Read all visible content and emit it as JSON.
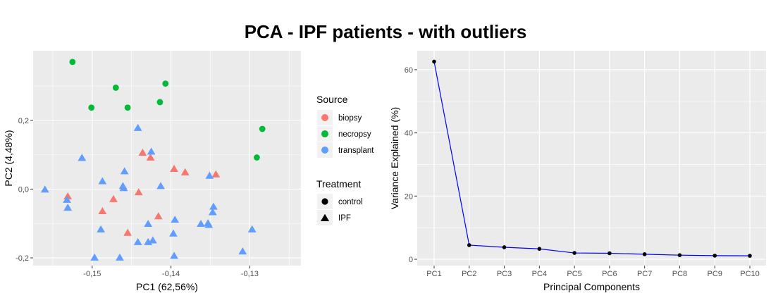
{
  "title": "PCA - IPF patients - with outliers",
  "colors": {
    "panel": "#ebebeb",
    "grid_major": "#ffffff",
    "biopsy": "#F8766D",
    "necropsy": "#00BA38",
    "transplant": "#619CFF",
    "scree_line": "#0000ff",
    "scree_point": "#000000"
  },
  "legend": {
    "source_title": "Source",
    "source_items": [
      {
        "label": "biopsy",
        "key": "biopsy"
      },
      {
        "label": "necropsy",
        "key": "necropsy"
      },
      {
        "label": "transplant",
        "key": "transplant"
      }
    ],
    "treatment_title": "Treatment",
    "treatment_items": [
      {
        "label": "control",
        "shape": "circle"
      },
      {
        "label": "IPF",
        "shape": "triangle"
      }
    ],
    "position": "right"
  },
  "chart_data": [
    {
      "type": "scatter",
      "xlabel": "PC1 (62,56%)",
      "ylabel": "PC2 (4,48%)",
      "xlim": [
        -0.1575,
        -0.1235
      ],
      "ylim": [
        -0.2225,
        0.4025
      ],
      "xticks": [
        -0.15,
        -0.14,
        -0.13
      ],
      "xtick_labels": [
        "-0,15",
        "-0,14",
        "-0,13"
      ],
      "yticks": [
        -0.2,
        0.0,
        0.2
      ],
      "ytick_labels": [
        "-0,2",
        "0,0",
        "0,2"
      ],
      "grid": true,
      "points": [
        {
          "x": -0.1525,
          "y": 0.37,
          "source": "necropsy",
          "treatment": "control"
        },
        {
          "x": -0.1501,
          "y": 0.237,
          "source": "necropsy",
          "treatment": "control"
        },
        {
          "x": -0.147,
          "y": 0.295,
          "source": "necropsy",
          "treatment": "control"
        },
        {
          "x": -0.1455,
          "y": 0.237,
          "source": "necropsy",
          "treatment": "control"
        },
        {
          "x": -0.1407,
          "y": 0.307,
          "source": "necropsy",
          "treatment": "control"
        },
        {
          "x": -0.1414,
          "y": 0.253,
          "source": "necropsy",
          "treatment": "control"
        },
        {
          "x": -0.1284,
          "y": 0.175,
          "source": "necropsy",
          "treatment": "control"
        },
        {
          "x": -0.1291,
          "y": 0.092,
          "source": "necropsy",
          "treatment": "control"
        },
        {
          "x": -0.1436,
          "y": 0.105,
          "source": "biopsy",
          "treatment": "IPF"
        },
        {
          "x": -0.1426,
          "y": 0.091,
          "source": "biopsy",
          "treatment": "IPF"
        },
        {
          "x": -0.1396,
          "y": 0.058,
          "source": "biopsy",
          "treatment": "IPF"
        },
        {
          "x": -0.1382,
          "y": 0.048,
          "source": "biopsy",
          "treatment": "IPF"
        },
        {
          "x": -0.1343,
          "y": 0.042,
          "source": "biopsy",
          "treatment": "IPF"
        },
        {
          "x": -0.1531,
          "y": -0.022,
          "source": "biopsy",
          "treatment": "IPF"
        },
        {
          "x": -0.1473,
          "y": -0.03,
          "source": "biopsy",
          "treatment": "IPF"
        },
        {
          "x": -0.1441,
          "y": -0.01,
          "source": "biopsy",
          "treatment": "IPF"
        },
        {
          "x": -0.1487,
          "y": -0.065,
          "source": "biopsy",
          "treatment": "IPF"
        },
        {
          "x": -0.1416,
          "y": -0.08,
          "source": "biopsy",
          "treatment": "IPF"
        },
        {
          "x": -0.1455,
          "y": -0.128,
          "source": "biopsy",
          "treatment": "IPF"
        },
        {
          "x": -0.1442,
          "y": 0.177,
          "source": "transplant",
          "treatment": "IPF"
        },
        {
          "x": -0.1425,
          "y": 0.108,
          "source": "transplant",
          "treatment": "IPF"
        },
        {
          "x": -0.1513,
          "y": 0.09,
          "source": "transplant",
          "treatment": "IPF"
        },
        {
          "x": -0.1459,
          "y": 0.051,
          "source": "transplant",
          "treatment": "IPF"
        },
        {
          "x": -0.1487,
          "y": 0.022,
          "source": "transplant",
          "treatment": "IPF"
        },
        {
          "x": -0.1461,
          "y": 0.008,
          "source": "transplant",
          "treatment": "IPF"
        },
        {
          "x": -0.146,
          "y": 0.002,
          "source": "transplant",
          "treatment": "IPF"
        },
        {
          "x": -0.1413,
          "y": 0.008,
          "source": "transplant",
          "treatment": "IPF"
        },
        {
          "x": -0.156,
          "y": -0.002,
          "source": "transplant",
          "treatment": "IPF"
        },
        {
          "x": -0.1532,
          "y": -0.032,
          "source": "transplant",
          "treatment": "IPF"
        },
        {
          "x": -0.1531,
          "y": -0.055,
          "source": "transplant",
          "treatment": "IPF"
        },
        {
          "x": -0.1351,
          "y": 0.038,
          "source": "transplant",
          "treatment": "IPF"
        },
        {
          "x": -0.1346,
          "y": -0.052,
          "source": "transplant",
          "treatment": "IPF"
        },
        {
          "x": -0.1347,
          "y": -0.068,
          "source": "transplant",
          "treatment": "IPF"
        },
        {
          "x": -0.1395,
          "y": -0.09,
          "source": "transplant",
          "treatment": "IPF"
        },
        {
          "x": -0.1429,
          "y": -0.102,
          "source": "transplant",
          "treatment": "IPF"
        },
        {
          "x": -0.1362,
          "y": -0.102,
          "source": "transplant",
          "treatment": "IPF"
        },
        {
          "x": -0.1353,
          "y": -0.1,
          "source": "transplant",
          "treatment": "IPF"
        },
        {
          "x": -0.1352,
          "y": -0.105,
          "source": "transplant",
          "treatment": "IPF"
        },
        {
          "x": -0.1489,
          "y": -0.118,
          "source": "transplant",
          "treatment": "IPF"
        },
        {
          "x": -0.1397,
          "y": -0.13,
          "source": "transplant",
          "treatment": "IPF"
        },
        {
          "x": -0.1297,
          "y": -0.118,
          "source": "transplant",
          "treatment": "IPF"
        },
        {
          "x": -0.1442,
          "y": -0.155,
          "source": "transplant",
          "treatment": "IPF"
        },
        {
          "x": -0.1429,
          "y": -0.155,
          "source": "transplant",
          "treatment": "IPF"
        },
        {
          "x": -0.1423,
          "y": -0.15,
          "source": "transplant",
          "treatment": "IPF"
        },
        {
          "x": -0.1396,
          "y": -0.195,
          "source": "transplant",
          "treatment": "IPF"
        },
        {
          "x": -0.1497,
          "y": -0.2,
          "source": "transplant",
          "treatment": "IPF"
        },
        {
          "x": -0.1465,
          "y": -0.2,
          "source": "transplant",
          "treatment": "IPF"
        },
        {
          "x": -0.1309,
          "y": -0.182,
          "source": "transplant",
          "treatment": "IPF"
        }
      ]
    },
    {
      "type": "line",
      "xlabel": "Principal Components",
      "ylabel": "Variance Explained (%)",
      "categories": [
        "PC1",
        "PC2",
        "PC3",
        "PC4",
        "PC5",
        "PC6",
        "PC7",
        "PC8",
        "PC9",
        "PC10"
      ],
      "values": [
        62.56,
        4.48,
        3.8,
        3.3,
        2.0,
        1.9,
        1.6,
        1.3,
        1.15,
        1.1
      ],
      "ylim": [
        -2.0,
        66.0
      ],
      "yticks": [
        0,
        20,
        40,
        60
      ],
      "ytick_labels": [
        "0",
        "20",
        "40",
        "60"
      ],
      "grid": true
    }
  ]
}
